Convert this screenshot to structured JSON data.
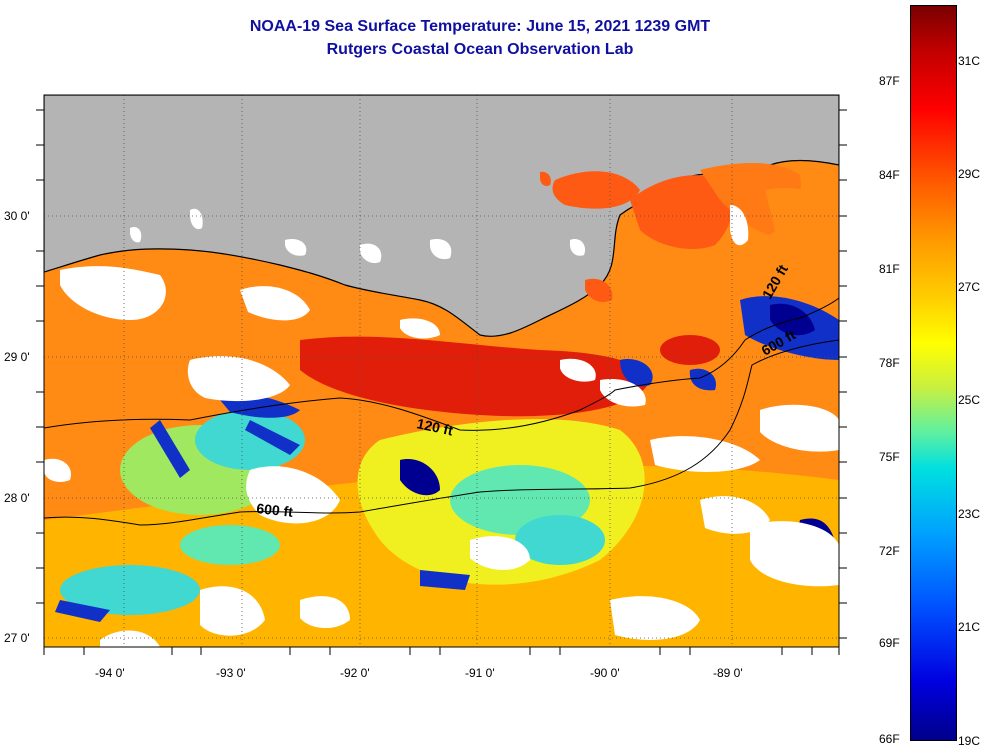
{
  "title": {
    "line1": "NOAA-19 Sea Surface Temperature:  June 15, 2021 1239 GMT",
    "line2": "Rutgers Coastal Ocean Observation Lab"
  },
  "axes": {
    "lat_labels": [
      "30 0'",
      "29 0'",
      "28 0'",
      "27 0'"
    ],
    "lon_labels": [
      "-94 0'",
      "-93 0'",
      "-92 0'",
      "-91 0'",
      "-90 0'",
      "-89 0'"
    ]
  },
  "contours": {
    "shelf_120": "120 ft",
    "shelf_600": "600 ft",
    "east_120": "120 ft",
    "east_600": "600 ft"
  },
  "colorbar": {
    "f_labels": [
      "87F",
      "84F",
      "81F",
      "78F",
      "75F",
      "72F",
      "69F",
      "66F"
    ],
    "c_labels": [
      "31C",
      "29C",
      "27C",
      "25C",
      "23C",
      "21C",
      "19C"
    ]
  },
  "colors": {
    "land": "#b4b4b4",
    "cloud": "#ffffff",
    "warm": "#ff5a14",
    "hot": "#e01e0a",
    "mid": "#ffb400",
    "yellow": "#f0f020",
    "cyan": "#40d8d0",
    "blue": "#1030c8",
    "navy": "#000090"
  }
}
